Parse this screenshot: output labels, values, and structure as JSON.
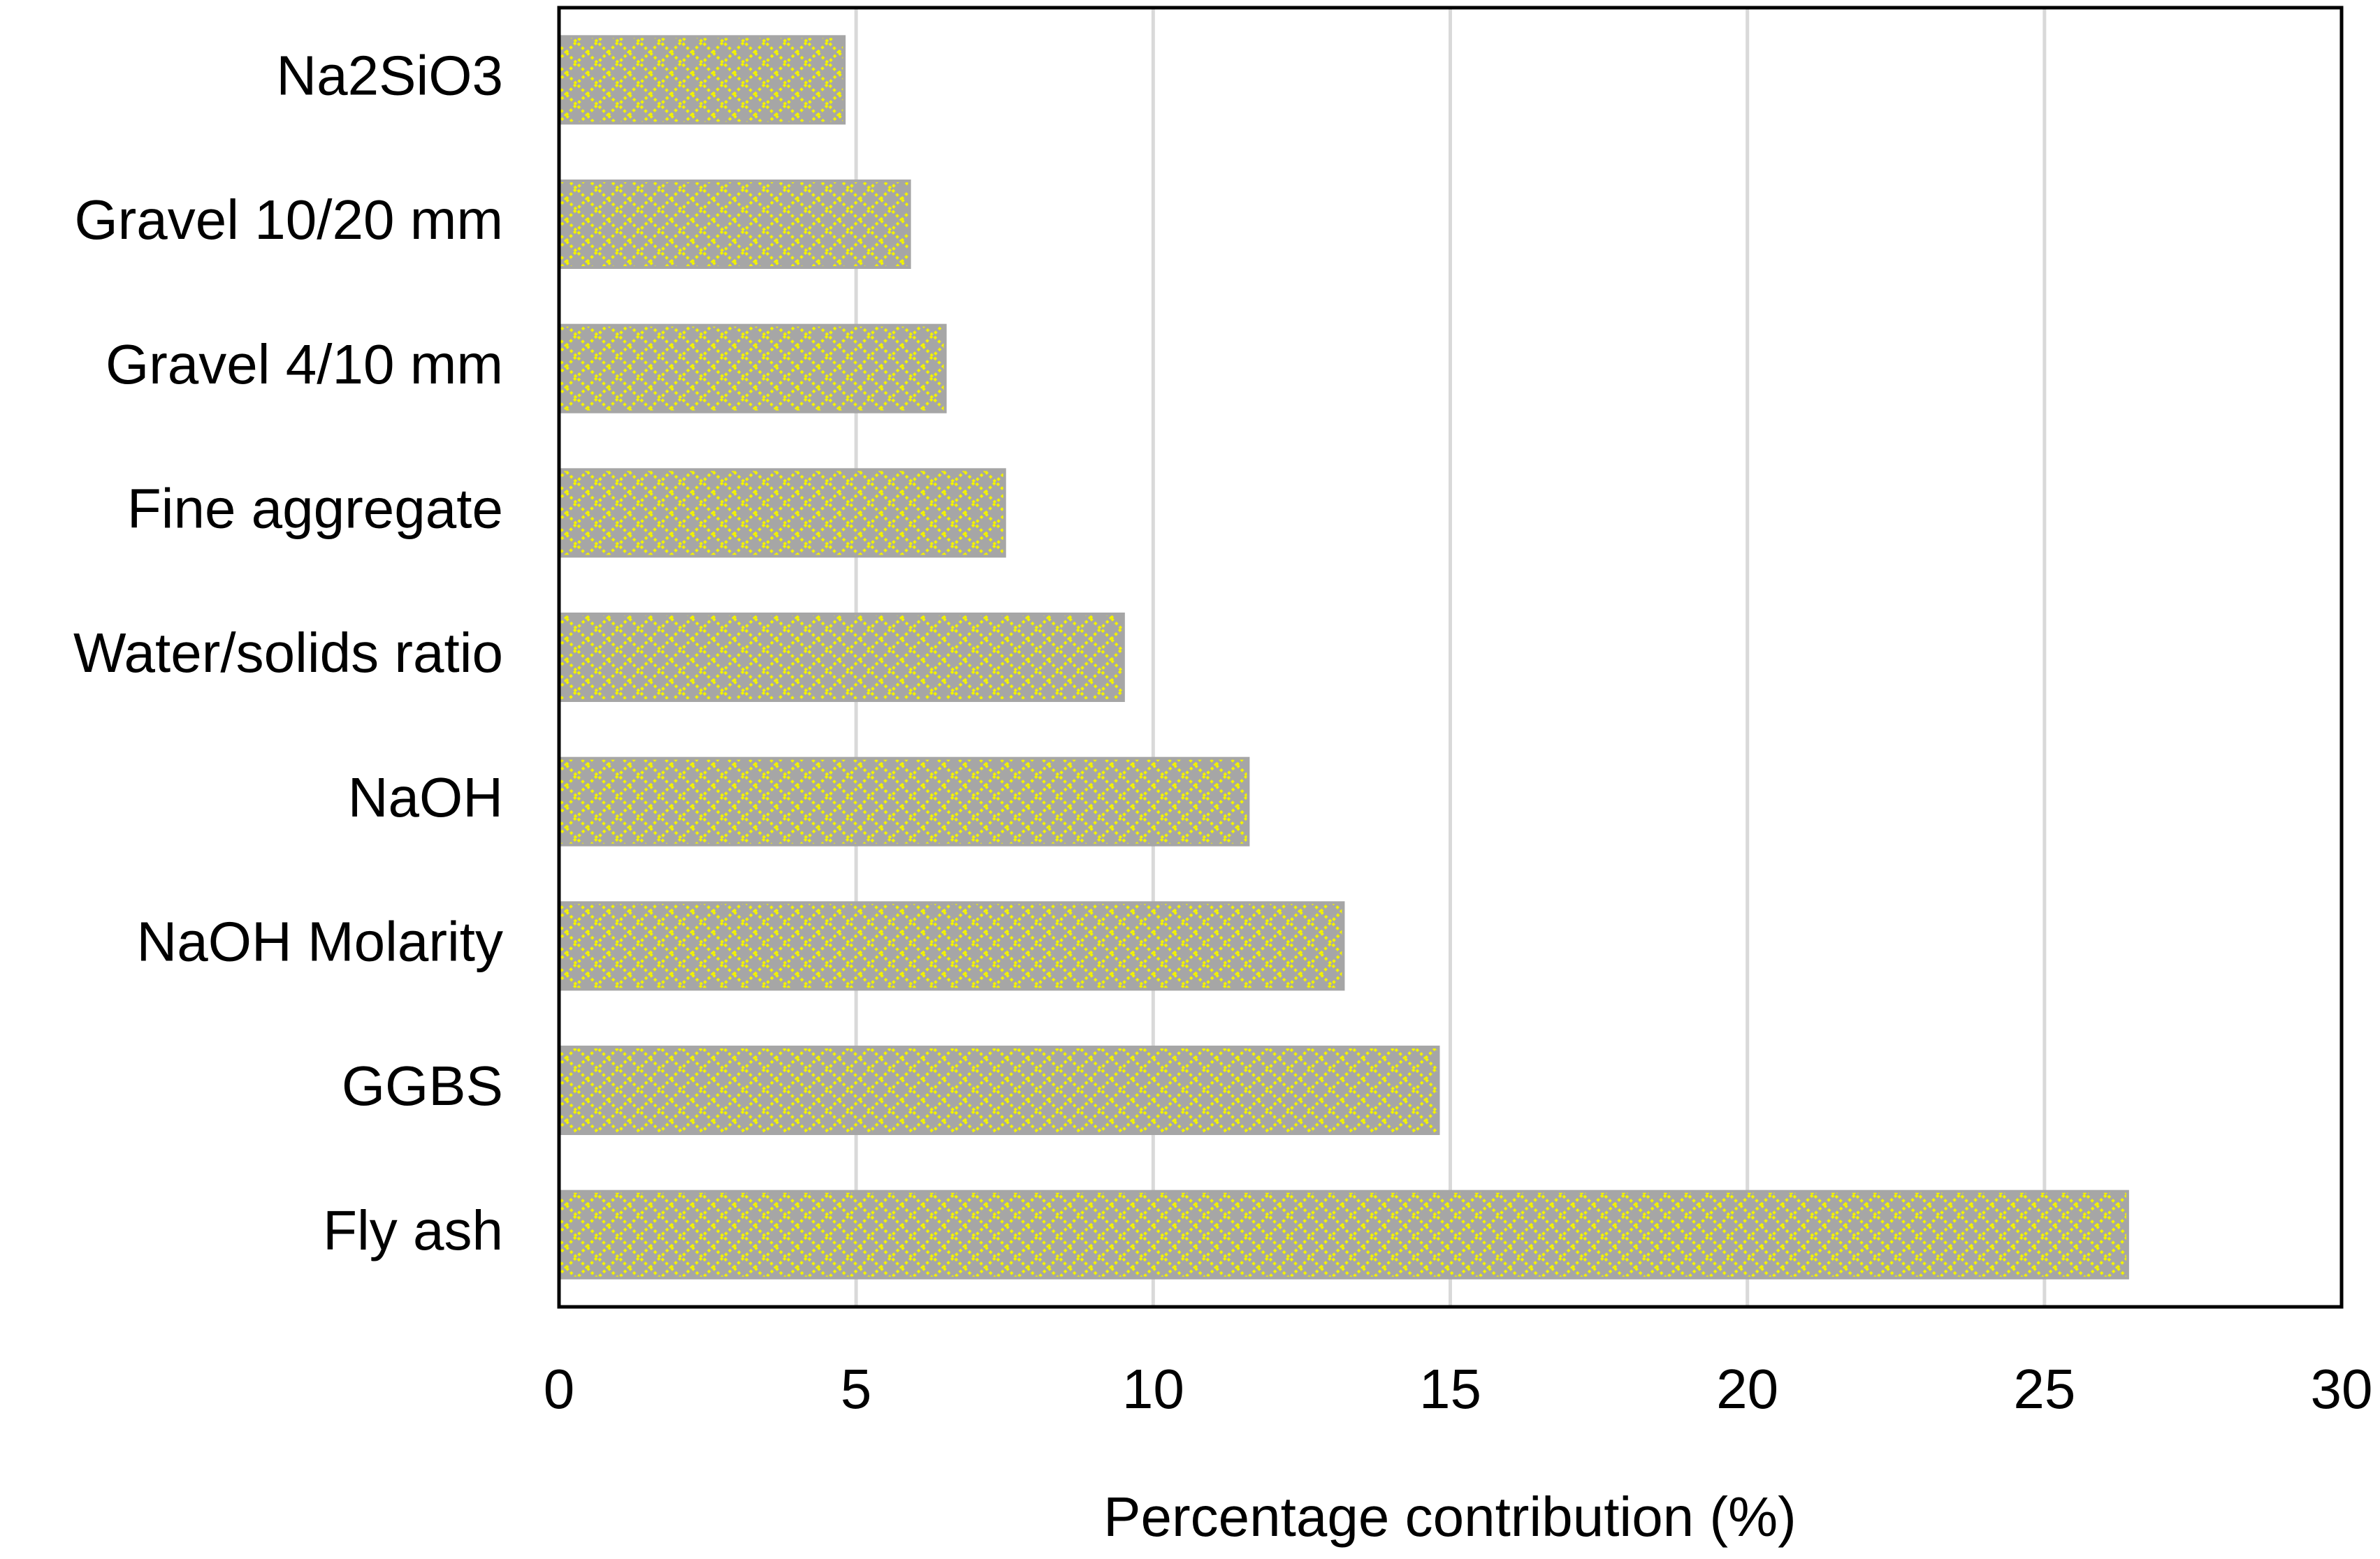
{
  "chart_data": {
    "type": "barh",
    "x_label": "Percentage contribution (%)",
    "categories": [
      "Na2SiO3",
      "Gravel 10/20 mm",
      "Gravel 4/10 mm",
      "Fine aggregate",
      "Water/solids ratio",
      "NaOH",
      "NaOH Molarity",
      "GGBS",
      "Fly ash"
    ],
    "values": [
      4.8,
      5.9,
      6.5,
      7.5,
      9.5,
      11.6,
      13.2,
      14.8,
      26.4
    ],
    "color": "#a6a6a6",
    "pattern_color": "#f2f200",
    "xlim": [
      0,
      30
    ],
    "xticks": [
      0,
      5,
      10,
      15,
      20,
      25,
      30
    ],
    "grid": true
  }
}
